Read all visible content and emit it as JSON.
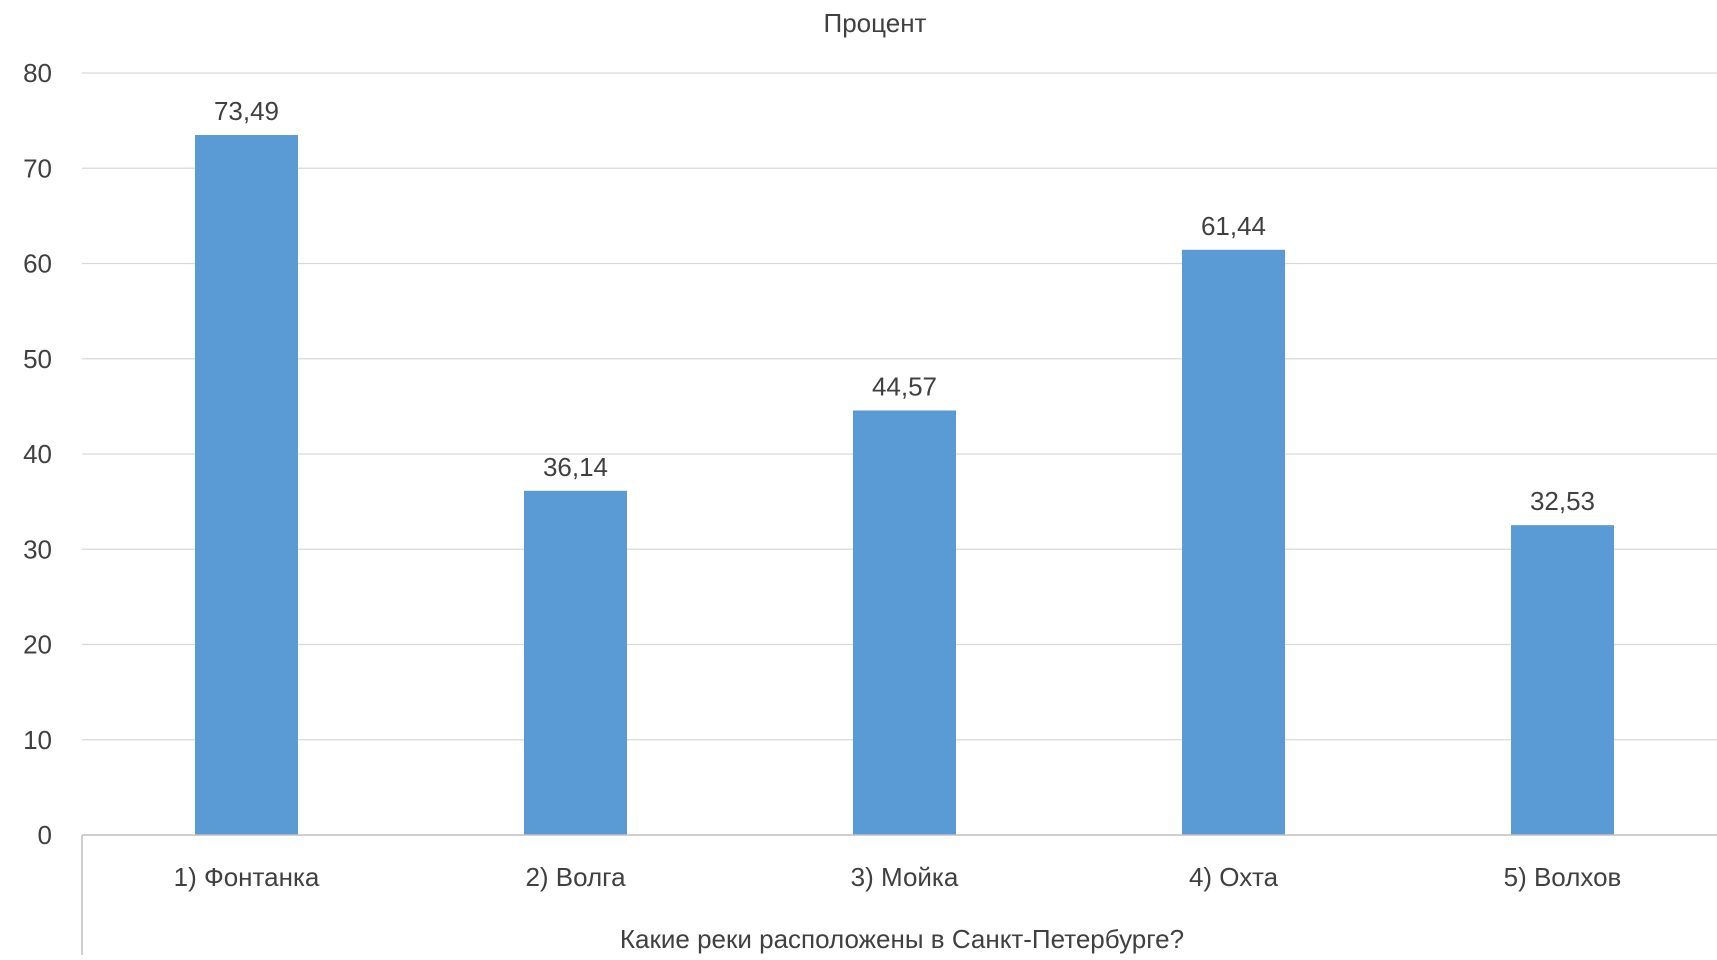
{
  "chart_data": {
    "type": "bar",
    "title": "Процент",
    "xlabel": "Какие реки расположены в Санкт-Петербурге?",
    "ylabel": "",
    "categories": [
      "1) Фонтанка",
      "2) Волга",
      "3) Мойка",
      "4) Охта",
      "5) Волхов"
    ],
    "values": [
      73.49,
      36.14,
      44.57,
      61.44,
      32.53
    ],
    "value_labels": [
      "73,49",
      "36,14",
      "44,57",
      "61,44",
      "32,53"
    ],
    "ylim": [
      0,
      80
    ],
    "yticks": [
      "0",
      "10",
      "20",
      "30",
      "40",
      "50",
      "60",
      "70",
      "80"
    ],
    "grid": true,
    "legend": "none",
    "colors": {
      "bar": "#5B9BD5",
      "text": "#404040",
      "grid": "#D9D9D9",
      "axis": "#BFBFBF"
    }
  }
}
